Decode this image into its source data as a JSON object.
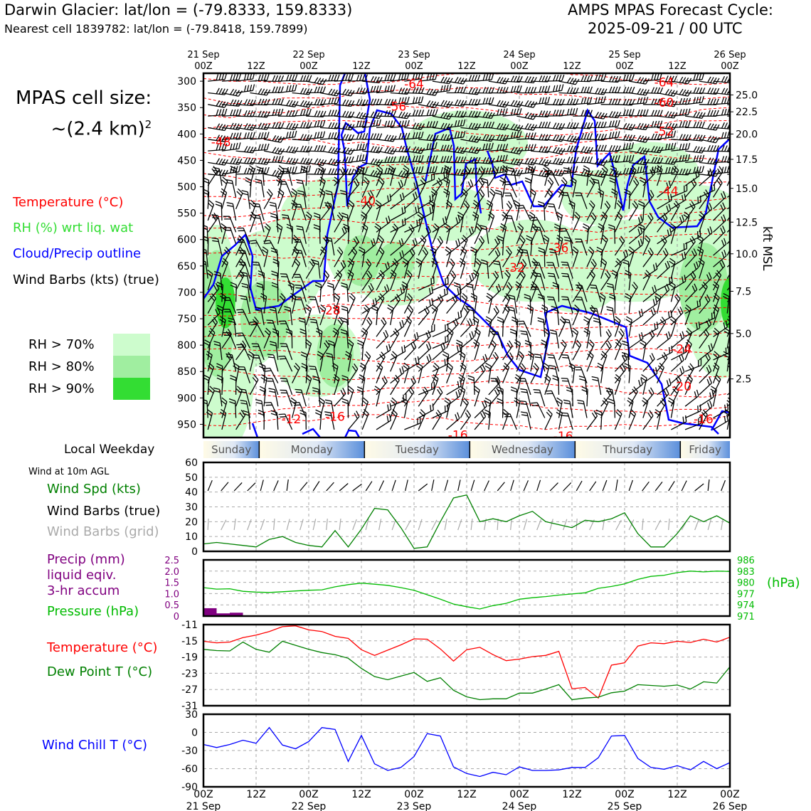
{
  "header": {
    "title": "Darwin Glacier: lat/lon = (-79.8333, 159.8333)",
    "subtitle": "Nearest cell 1839782: lat/lon = (-79.8418, 159.7899)",
    "model": "AMPS MPAS Forecast Cycle:",
    "cycle": "2025-09-21 / 00 UTC"
  },
  "cell_size": {
    "line1": "MPAS cell size:",
    "line2": "~(2.4 km)",
    "sup": "2"
  },
  "legend": {
    "temperature": "Temperature (°C)",
    "rh": "RH (%) wrt liq. wat",
    "cloud": "Cloud/Precip outline",
    "wind_barbs": "Wind Barbs (kts) (true)",
    "rh70": "RH > 70%",
    "rh80": "RH > 80%",
    "rh90": "RH > 90%"
  },
  "colors": {
    "temp": "#ff0000",
    "rh70": "#cdfccd",
    "rh80": "#a0eea0",
    "rh90": "#33dd33",
    "cloud": "#0000ff",
    "wind_spd": "#008000",
    "pressure": "#00bb00",
    "precip": "#800080",
    "dewpoint": "#008000",
    "windchill": "#0000ff",
    "barb_grid": "#aaaaaa"
  },
  "time_axis": {
    "top_dates": [
      "21 Sep",
      "22 Sep",
      "23 Sep",
      "24 Sep",
      "25 Sep",
      "26 Sep"
    ],
    "ticks": [
      "00Z",
      "12Z",
      "00Z",
      "12Z",
      "00Z",
      "12Z",
      "00Z",
      "12Z",
      "00Z",
      "12Z",
      "00Z"
    ],
    "bottom_dates": [
      "21 Sep",
      "22 Sep",
      "23 Sep",
      "24 Sep",
      "25 Sep",
      "26 Sep"
    ]
  },
  "weekday_bar": {
    "label": "Local Weekday",
    "days": [
      "Sunday",
      "Monday",
      "Tuesday",
      "Wednesday",
      "Thursday",
      "Friday"
    ]
  },
  "chart_data": [
    {
      "type": "heatmap",
      "name": "cross-section",
      "x_unit": "hours from 2025-09-21 00Z",
      "xlim": [
        0,
        120
      ],
      "y_left_ticks": [
        300,
        350,
        400,
        450,
        500,
        550,
        600,
        650,
        700,
        750,
        800,
        850,
        900,
        950
      ],
      "ylim_hpa": [
        285,
        975
      ],
      "y_right_label": "kft MSL",
      "y_right_ticks": [
        {
          "hpa": 326,
          "label": "25.0"
        },
        {
          "hpa": 358,
          "label": "22.5"
        },
        {
          "hpa": 400,
          "label": "20.0"
        },
        {
          "hpa": 448,
          "label": "17.5"
        },
        {
          "hpa": 503,
          "label": "15.0"
        },
        {
          "hpa": 567,
          "label": "12.5"
        },
        {
          "hpa": 627,
          "label": "10.0"
        },
        {
          "hpa": 698,
          "label": "7.5"
        },
        {
          "hpa": 778,
          "label": "5.0"
        },
        {
          "hpa": 864,
          "label": "2.5"
        }
      ],
      "temp_labels": [
        {
          "x": 48,
          "p": 305,
          "t": "-64"
        },
        {
          "x": 44,
          "p": 348,
          "t": "-56"
        },
        {
          "x": 4,
          "p": 415,
          "t": "-48"
        },
        {
          "x": 37,
          "p": 526,
          "t": "-40"
        },
        {
          "x": 81,
          "p": 616,
          "t": "-36"
        },
        {
          "x": 71,
          "p": 653,
          "t": "-32"
        },
        {
          "x": 29,
          "p": 734,
          "t": "-28"
        },
        {
          "x": 109,
          "p": 807,
          "t": "-24"
        },
        {
          "x": 109,
          "p": 878,
          "t": "-20"
        },
        {
          "x": 114,
          "p": 940,
          "t": "-16"
        },
        {
          "x": 82,
          "p": 972,
          "t": "-16"
        },
        {
          "x": 20,
          "p": 940,
          "t": "-12"
        },
        {
          "x": 30,
          "p": 935,
          "t": "-16"
        },
        {
          "x": 58,
          "p": 970,
          "t": "-16"
        },
        {
          "x": 105,
          "p": 340,
          "t": "-60"
        },
        {
          "x": 105,
          "p": 395,
          "t": "-52"
        },
        {
          "x": 106,
          "p": 508,
          "t": "-44"
        },
        {
          "x": 105,
          "p": 302,
          "t": "-64"
        }
      ]
    },
    {
      "type": "line",
      "name": "wind",
      "label": "Wind at 10m AGL",
      "series_labels": [
        "Wind Spd (kts)",
        "Wind Barbs (true)",
        "Wind Barbs (grid)"
      ],
      "ylim": [
        0,
        60
      ],
      "yticks": [
        0,
        10,
        20,
        30,
        40,
        50,
        60
      ],
      "x": [
        0,
        3,
        6,
        9,
        12,
        15,
        18,
        21,
        24,
        27,
        30,
        33,
        36,
        39,
        42,
        45,
        48,
        51,
        54,
        57,
        60,
        63,
        66,
        69,
        72,
        75,
        78,
        81,
        84,
        87,
        90,
        93,
        96,
        99,
        102,
        105,
        108,
        111,
        114,
        117,
        120
      ],
      "values": [
        5,
        6,
        5,
        4,
        3,
        8,
        10,
        6,
        4,
        3,
        14,
        3,
        15,
        29,
        28,
        16,
        2,
        3,
        20,
        36,
        38,
        20,
        22,
        20,
        24,
        27,
        20,
        18,
        16,
        21,
        20,
        22,
        26,
        12,
        3,
        3,
        12,
        24,
        20,
        24,
        19
      ]
    },
    {
      "type": "line",
      "name": "precip-pressure",
      "precip_label": [
        "Precip (mm)",
        "liquid eqiv.",
        "3-hr accum"
      ],
      "pressure_label": "Pressure (hPa)",
      "hpa_unit": "(hPa)",
      "precip_ylim": [
        0,
        2.5
      ],
      "precip_ticks": [
        "2.5",
        "2.0",
        "1.5",
        "1.0",
        "0.5",
        "0"
      ],
      "pressure_ylim": [
        971,
        986
      ],
      "pressure_ticks": [
        "986",
        "983",
        "980",
        "977",
        "974",
        "971"
      ],
      "precip": [
        {
          "x0": 0,
          "x1": 3,
          "v": 0.35
        },
        {
          "x0": 3,
          "x1": 6,
          "v": 0.12
        },
        {
          "x0": 6,
          "x1": 9,
          "v": 0.15
        }
      ],
      "x": [
        0,
        3,
        6,
        9,
        12,
        15,
        18,
        21,
        24,
        27,
        30,
        33,
        36,
        39,
        42,
        45,
        48,
        51,
        54,
        57,
        60,
        63,
        66,
        69,
        72,
        75,
        78,
        81,
        84,
        87,
        90,
        93,
        96,
        99,
        102,
        105,
        108,
        111,
        114,
        117,
        120
      ],
      "pressure": [
        978.6,
        978.2,
        978.3,
        977.6,
        977.4,
        977.3,
        977.5,
        977.7,
        977.9,
        978.0,
        978.8,
        979.4,
        979.8,
        979.5,
        979.2,
        978.6,
        977.9,
        976.7,
        975.5,
        974.2,
        973.5,
        972.9,
        973.8,
        974.4,
        975.5,
        975.9,
        976.2,
        976.6,
        976.9,
        977.2,
        978.4,
        978.9,
        979.6,
        980.8,
        981.6,
        981.9,
        982.6,
        983.0,
        982.8,
        983.0,
        982.9
      ]
    },
    {
      "type": "line",
      "name": "temperature",
      "series_labels": [
        "Temperature (°C)",
        "Dew Point T (°C)"
      ],
      "ylim": [
        -31,
        -11
      ],
      "yticks": [
        -11,
        -15,
        -19,
        -23,
        -27,
        -31
      ],
      "x": [
        0,
        3,
        6,
        9,
        12,
        15,
        18,
        21,
        24,
        27,
        30,
        33,
        36,
        39,
        42,
        45,
        48,
        51,
        54,
        57,
        60,
        63,
        66,
        69,
        72,
        75,
        78,
        81,
        84,
        87,
        90,
        93,
        96,
        99,
        102,
        105,
        108,
        111,
        114,
        117,
        120
      ],
      "temperature": [
        -15.1,
        -15.5,
        -15.3,
        -14.2,
        -13.6,
        -12.7,
        -11.5,
        -11.3,
        -12.3,
        -12.7,
        -13.9,
        -14.4,
        -17.2,
        -18.6,
        -17.3,
        -16.0,
        -14.5,
        -14.6,
        -17.0,
        -20.0,
        -17.2,
        -16.6,
        -18.4,
        -19.9,
        -19.5,
        -18.9,
        -18.6,
        -17.6,
        -26.8,
        -26.5,
        -29.1,
        -21.0,
        -20.4,
        -16.3,
        -15.5,
        -15.7,
        -15.1,
        -15.4,
        -14.6,
        -15.3,
        -14.1
      ],
      "dewpoint": [
        -17.1,
        -17.4,
        -17.5,
        -15.3,
        -17.1,
        -17.8,
        -15.1,
        -16.1,
        -17.1,
        -17.9,
        -18.4,
        -19.3,
        -21.8,
        -23.8,
        -24.6,
        -23.7,
        -22.8,
        -25.0,
        -24.1,
        -27.2,
        -28.8,
        -29.5,
        -29.3,
        -29.3,
        -27.9,
        -27.9,
        -26.9,
        -25.8,
        -29.5,
        -29.1,
        -28.9,
        -27.8,
        -27.4,
        -25.8,
        -26.0,
        -26.2,
        -25.9,
        -26.9,
        -25.1,
        -25.4,
        -21.4
      ]
    },
    {
      "type": "line",
      "name": "wind-chill",
      "label": "Wind Chill T (°C)",
      "ylim": [
        -90,
        30
      ],
      "yticks": [
        30,
        0,
        -30,
        -60,
        -90
      ],
      "x": [
        0,
        3,
        6,
        9,
        12,
        15,
        18,
        21,
        24,
        27,
        30,
        33,
        36,
        39,
        42,
        45,
        48,
        51,
        54,
        57,
        60,
        63,
        66,
        69,
        72,
        75,
        78,
        81,
        84,
        87,
        90,
        93,
        96,
        99,
        102,
        105,
        108,
        111,
        114,
        117,
        120
      ],
      "values": [
        -20,
        -25,
        -20,
        -13,
        -18,
        8,
        -21,
        -27,
        -15,
        8,
        5,
        -48,
        -5,
        -52,
        -63,
        -58,
        -40,
        -2,
        -6,
        -57,
        -68,
        -73,
        -66,
        -70,
        -57,
        -63,
        -63,
        -62,
        -58,
        -58,
        -42,
        -6,
        -5,
        -43,
        -58,
        -61,
        -55,
        -62,
        -48,
        -60,
        -50
      ]
    }
  ]
}
